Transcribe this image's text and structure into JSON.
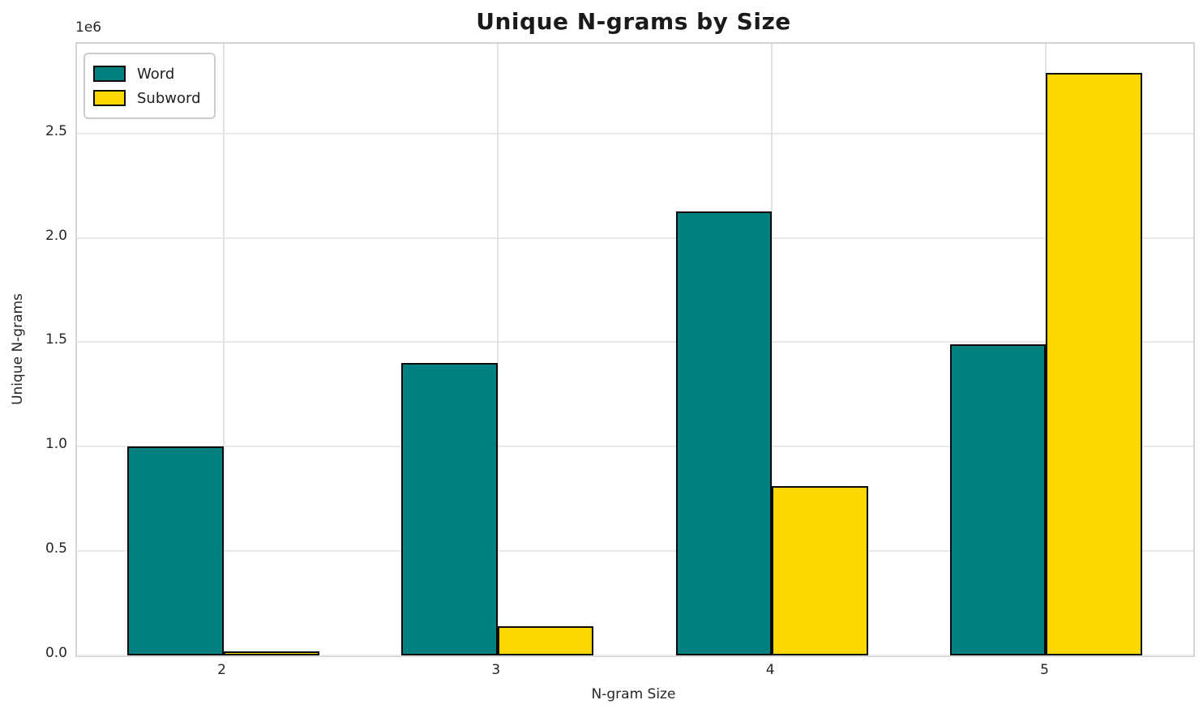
{
  "chart_data": {
    "type": "bar",
    "title": "Unique N-grams by Size",
    "xlabel": "N-gram Size",
    "ylabel": "Unique N-grams",
    "y_offset_label": "1e6",
    "categories": [
      "2",
      "3",
      "4",
      "5"
    ],
    "series": [
      {
        "name": "Word",
        "color": "#008080",
        "values": [
          1000000,
          1400000,
          2125000,
          1490000
        ]
      },
      {
        "name": "Subword",
        "color": "#FFD700",
        "values": [
          20000,
          140000,
          810000,
          2790000
        ]
      }
    ],
    "ylim": [
      0,
      2930000
    ],
    "yticks": {
      "values": [
        0,
        500000,
        1000000,
        1500000,
        2000000,
        2500000
      ],
      "labels": [
        "0.0",
        "0.5",
        "1.0",
        "1.5",
        "2.0",
        "2.5"
      ]
    },
    "grid": true,
    "legend_position": "upper-left",
    "bar_edge_color": "#0a0a0a",
    "style": {
      "grid_color": "#e9e9e9",
      "spine_color": "#d4d4d4",
      "text_color": "#262626",
      "title_color": "#1a1a1a"
    }
  }
}
